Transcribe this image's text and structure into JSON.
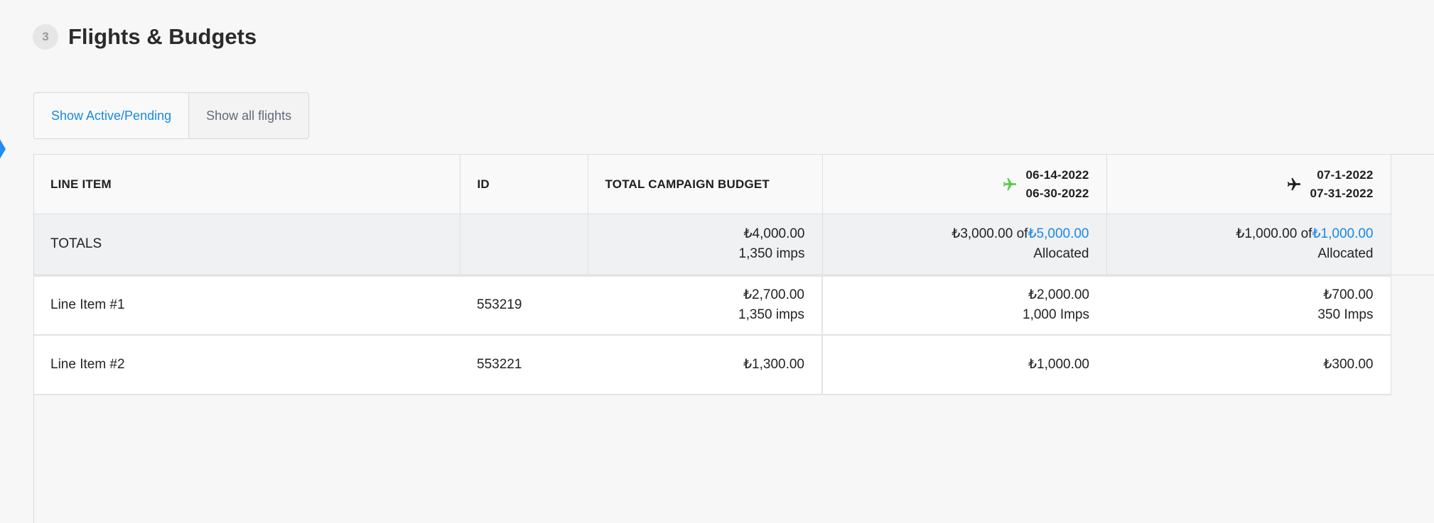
{
  "section": {
    "step": "3",
    "title": "Flights & Budgets"
  },
  "filters": {
    "active_label": "Show Active/Pending",
    "all_label": "Show all flights"
  },
  "columns": {
    "line_item": "LINE ITEM",
    "id": "ID",
    "total_budget": "TOTAL CAMPAIGN BUDGET",
    "flights": [
      {
        "start": "06-14-2022",
        "end": "06-30-2022",
        "icon": "plane-icon",
        "color": "#5cc84a"
      },
      {
        "start": "07-1-2022",
        "end": "07-31-2022",
        "icon": "plane-icon",
        "color": "#1e1e1e"
      }
    ]
  },
  "totals": {
    "label": "TOTALS",
    "budget": "₺4,000.00",
    "imps": "1,350 imps",
    "flights": [
      {
        "allocated": "₺3,000.00",
        "of": "of",
        "total": "₺5,000.00",
        "status": "Allocated"
      },
      {
        "allocated": "₺1,000.00",
        "of": "of",
        "total": "₺1,000.00",
        "status": "Allocated"
      }
    ]
  },
  "rows": [
    {
      "name": "Line Item #1",
      "id": "553219",
      "budget": "₺2,700.00",
      "imps": "1,350 imps",
      "flights": [
        {
          "amount": "₺2,000.00",
          "imps": "1,000 Imps"
        },
        {
          "amount": "₺700.00",
          "imps": "350 Imps"
        }
      ]
    },
    {
      "name": "Line Item #2",
      "id": "553221",
      "budget": "₺1,300.00",
      "imps": "",
      "flights": [
        {
          "amount": "₺1,000.00",
          "imps": ""
        },
        {
          "amount": "₺300.00",
          "imps": ""
        }
      ]
    }
  ],
  "colors": {
    "accent": "#1a88e4",
    "active_flight": "#5cc84a"
  }
}
